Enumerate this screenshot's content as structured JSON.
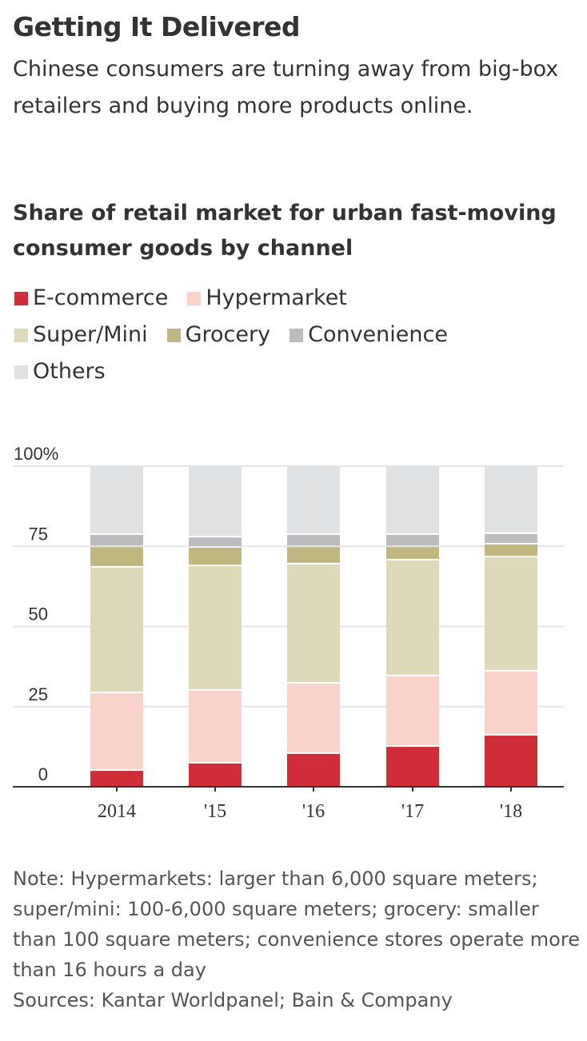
{
  "header": {
    "title": "Getting It Delivered",
    "subtitle": "Chinese consumers are turning away from big-box retailers and buying more products online."
  },
  "chart_data": {
    "type": "bar",
    "stacked": true,
    "title": "Share of retail market for urban fast-moving consumer goods by channel",
    "xlabel": "",
    "ylabel": "",
    "categories": [
      "2014",
      "'15",
      "'16",
      "'17",
      "'18"
    ],
    "yticks": [
      "0",
      "25",
      "50",
      "75",
      "100%"
    ],
    "ytick_values": [
      0,
      25,
      50,
      75,
      100
    ],
    "ylim": [
      0,
      100
    ],
    "grid": true,
    "legend_position": "top-left",
    "series": [
      {
        "name": "E-commerce",
        "color": "#cf2e38",
        "values": [
          5.2,
          7.5,
          10.5,
          12.7,
          16.2
        ]
      },
      {
        "name": "Hypermarket",
        "color": "#f9d2ca",
        "values": [
          24.2,
          22.7,
          21.9,
          22.0,
          20.0
        ]
      },
      {
        "name": "Super/Mini",
        "color": "#dcd8b8",
        "values": [
          39.2,
          38.8,
          37.2,
          36.1,
          35.6
        ]
      },
      {
        "name": "Grocery",
        "color": "#bfb77f",
        "values": [
          6.4,
          5.8,
          5.4,
          4.2,
          4.0
        ]
      },
      {
        "name": "Convenience",
        "color": "#bcbcbe",
        "values": [
          3.8,
          3.2,
          3.8,
          3.8,
          3.3
        ]
      },
      {
        "name": "Others",
        "color": "#e0e1e3",
        "values": [
          21.2,
          22.0,
          21.2,
          21.2,
          20.9
        ]
      }
    ]
  },
  "legend_rows": [
    [
      0,
      1
    ],
    [
      2,
      3,
      4
    ],
    [
      5
    ]
  ],
  "footer": {
    "note": "Note: Hypermarkets: larger than 6,000 square meters; super/mini: 100-6,000 square meters; grocery: smaller than 100 square meters; convenience stores operate more than 16 hours a day",
    "sources": "Sources: Kantar Worldpanel; Bain & Company"
  }
}
